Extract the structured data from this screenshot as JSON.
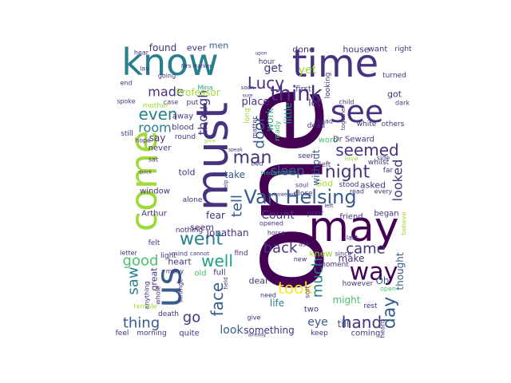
{
  "colors": {
    "background": "#ffffff",
    "palette": [
      "#440154",
      "#46327e",
      "#365c8d",
      "#277f8e",
      "#1fa187",
      "#4ac16d",
      "#a0da39",
      "#fde725"
    ]
  },
  "words": [
    {
      "text": "one",
      "c": 0
    },
    {
      "text": "time",
      "c": 1
    },
    {
      "text": "know",
      "c": 3
    },
    {
      "text": "may",
      "c": 0
    },
    {
      "text": "must",
      "c": 1
    },
    {
      "text": "come",
      "c": 6
    },
    {
      "text": "us",
      "c": 2
    },
    {
      "text": "see",
      "c": 1
    },
    {
      "text": "Van Helsing",
      "c": 2
    },
    {
      "text": "way",
      "c": 0
    },
    {
      "text": "think",
      "c": 1
    },
    {
      "text": "night",
      "c": 1
    },
    {
      "text": "went",
      "c": 3
    },
    {
      "text": "Lucy",
      "c": 1
    },
    {
      "text": "took",
      "c": 7
    },
    {
      "text": "well",
      "c": 4
    },
    {
      "text": "even",
      "c": 3
    },
    {
      "text": "room",
      "c": 3
    },
    {
      "text": "man",
      "c": 1
    },
    {
      "text": "seemed",
      "c": 1
    },
    {
      "text": "hand",
      "c": 1
    },
    {
      "text": "good",
      "c": 5
    },
    {
      "text": "face",
      "c": 2
    },
    {
      "text": "day",
      "c": 2
    },
    {
      "text": "came",
      "c": 1
    },
    {
      "text": "much",
      "c": 3
    },
    {
      "text": "looked",
      "c": 1
    },
    {
      "text": "door",
      "c": 2
    },
    {
      "text": "thing",
      "c": 2
    },
    {
      "text": "saw",
      "c": 3
    },
    {
      "text": "go",
      "c": 1
    },
    {
      "text": "back",
      "c": 1
    },
    {
      "text": "tell",
      "c": 2
    },
    {
      "text": "though",
      "c": 1
    },
    {
      "text": "sleep",
      "c": 2
    },
    {
      "text": "Count",
      "c": 1
    },
    {
      "text": "made",
      "c": 1
    },
    {
      "text": "get",
      "c": 1
    },
    {
      "text": "Professor",
      "c": 6
    },
    {
      "text": "Jonathan",
      "c": 1
    },
    {
      "text": "eye",
      "c": 2
    },
    {
      "text": "look",
      "c": 2
    },
    {
      "text": "life",
      "c": 3
    },
    {
      "text": "thought",
      "c": 2
    },
    {
      "text": "say",
      "c": 1
    },
    {
      "text": "place",
      "c": 1
    },
    {
      "text": "found",
      "c": 1
    },
    {
      "text": "ever",
      "c": 1
    },
    {
      "text": "men",
      "c": 2
    },
    {
      "text": "done",
      "c": 1
    },
    {
      "text": "house",
      "c": 1
    },
    {
      "text": "want",
      "c": 1
    },
    {
      "text": "first",
      "c": 1
    },
    {
      "text": "yet",
      "c": 6
    },
    {
      "text": "work",
      "c": 4
    },
    {
      "text": "little",
      "c": 4
    },
    {
      "text": "let",
      "c": 1
    },
    {
      "text": "got",
      "c": 1
    },
    {
      "text": "Oh",
      "c": 2
    },
    {
      "text": "knew",
      "c": 6
    },
    {
      "text": "make",
      "c": 1
    },
    {
      "text": "might",
      "c": 5
    },
    {
      "text": "something",
      "c": 1
    },
    {
      "text": "heart",
      "c": 1
    },
    {
      "text": "great",
      "c": 1
    },
    {
      "text": "take",
      "c": 2
    },
    {
      "text": "fear",
      "c": 1
    },
    {
      "text": "told",
      "c": 1
    },
    {
      "text": "window",
      "c": 1
    },
    {
      "text": "Arthur",
      "c": 1
    },
    {
      "text": "seem",
      "c": 1
    },
    {
      "text": "never",
      "c": 1
    },
    {
      "text": "asked",
      "c": 1
    },
    {
      "text": "friend",
      "c": 1
    },
    {
      "text": "began",
      "c": 1
    },
    {
      "text": "God",
      "c": 6
    },
    {
      "text": "word",
      "c": 5
    },
    {
      "text": "without",
      "c": 2
    },
    {
      "text": "dear",
      "c": 1
    },
    {
      "text": "two",
      "c": 1
    },
    {
      "text": "till",
      "c": 2
    },
    {
      "text": "coming",
      "c": 1
    },
    {
      "text": "keep",
      "c": 1
    },
    {
      "text": "quite",
      "c": 1
    },
    {
      "text": "morning",
      "c": 1
    },
    {
      "text": "feel",
      "c": 1
    },
    {
      "text": "death",
      "c": 1
    },
    {
      "text": "old",
      "c": 5
    },
    {
      "text": "full",
      "c": 1
    },
    {
      "text": "still",
      "c": 1
    },
    {
      "text": "blood",
      "c": 1
    },
    {
      "text": "away",
      "c": 1
    },
    {
      "text": "mother",
      "c": 6
    },
    {
      "text": "put",
      "c": 1
    },
    {
      "text": "round",
      "c": 1
    },
    {
      "text": "Dr Seward",
      "c": 1
    },
    {
      "text": "whilst",
      "c": 1
    },
    {
      "text": "white",
      "c": 1
    },
    {
      "text": "others",
      "c": 1
    },
    {
      "text": "seen",
      "c": 1
    },
    {
      "text": "bed",
      "c": 1
    },
    {
      "text": "Madam Mina",
      "c": 4
    },
    {
      "text": "close",
      "c": 1
    },
    {
      "text": "poor",
      "c": 1
    },
    {
      "text": "stood",
      "c": 1
    },
    {
      "text": "left",
      "c": 1
    },
    {
      "text": "love",
      "c": 6
    },
    {
      "text": "far",
      "c": 1
    },
    {
      "text": "matter",
      "c": 1
    },
    {
      "text": "ready",
      "c": 5
    },
    {
      "text": "long",
      "c": 6
    },
    {
      "text": "head",
      "c": 1
    },
    {
      "text": "looking",
      "c": 1
    },
    {
      "text": "turned",
      "c": 1
    },
    {
      "text": "dark",
      "c": 1
    },
    {
      "text": "child",
      "c": 1
    },
    {
      "text": "Mrs Harker",
      "c": 1
    },
    {
      "text": "hour",
      "c": 1
    },
    {
      "text": "right",
      "c": 1
    },
    {
      "text": "hear",
      "c": 1
    },
    {
      "text": "lay",
      "c": 1
    },
    {
      "text": "going",
      "c": 1
    },
    {
      "text": "case",
      "c": 1
    },
    {
      "text": "Mina",
      "c": 4
    },
    {
      "text": "nothing",
      "c": 1
    },
    {
      "text": "alone",
      "c": 1
    },
    {
      "text": "soul",
      "c": 1
    },
    {
      "text": "opened",
      "c": 1
    },
    {
      "text": "horse",
      "c": 1
    },
    {
      "text": "light",
      "c": 1
    },
    {
      "text": "felt",
      "c": 1
    },
    {
      "text": "letter",
      "c": 1
    },
    {
      "text": "mind",
      "c": 1
    },
    {
      "text": "many",
      "c": 1
    },
    {
      "text": "find",
      "c": 1
    },
    {
      "text": "moment",
      "c": 1
    },
    {
      "text": "however",
      "c": 1
    },
    {
      "text": "need",
      "c": 1
    },
    {
      "text": "sort",
      "c": 1
    },
    {
      "text": "rest",
      "c": 1
    },
    {
      "text": "open",
      "c": 5
    },
    {
      "text": "since",
      "c": 1
    },
    {
      "text": "last",
      "c": 1
    },
    {
      "text": "read",
      "c": 1
    },
    {
      "text": "every",
      "c": 1
    },
    {
      "text": "side",
      "c": 1
    },
    {
      "text": "together",
      "c": 1
    },
    {
      "text": "end",
      "c": 1
    },
    {
      "text": "spoke",
      "c": 1
    },
    {
      "text": "hope",
      "c": 1
    },
    {
      "text": "whole",
      "c": 1
    },
    {
      "text": "strange",
      "c": 1
    },
    {
      "text": "anything",
      "c": 1
    },
    {
      "text": "cannot",
      "c": 1
    },
    {
      "text": "held",
      "c": 1
    },
    {
      "text": "terrible",
      "c": 6
    },
    {
      "text": "give",
      "c": 1
    },
    {
      "text": "heard",
      "c": 1
    },
    {
      "text": "believe",
      "c": 6
    },
    {
      "text": "already",
      "c": 1
    },
    {
      "text": "gone",
      "c": 6
    },
    {
      "text": "sat",
      "c": 1
    },
    {
      "text": "dead",
      "c": 1
    },
    {
      "text": "ask",
      "c": 1
    },
    {
      "text": "new",
      "c": 1
    },
    {
      "text": "help",
      "c": 1
    },
    {
      "text": "speak",
      "c": 1
    },
    {
      "text": "answered",
      "c": 1
    },
    {
      "text": "soon",
      "c": 1
    },
    {
      "text": "upon",
      "c": 1
    },
    {
      "text": "sure",
      "c": 1
    },
    {
      "text": "quick",
      "c": 1
    },
    {
      "text": "left",
      "c": 1
    }
  ]
}
